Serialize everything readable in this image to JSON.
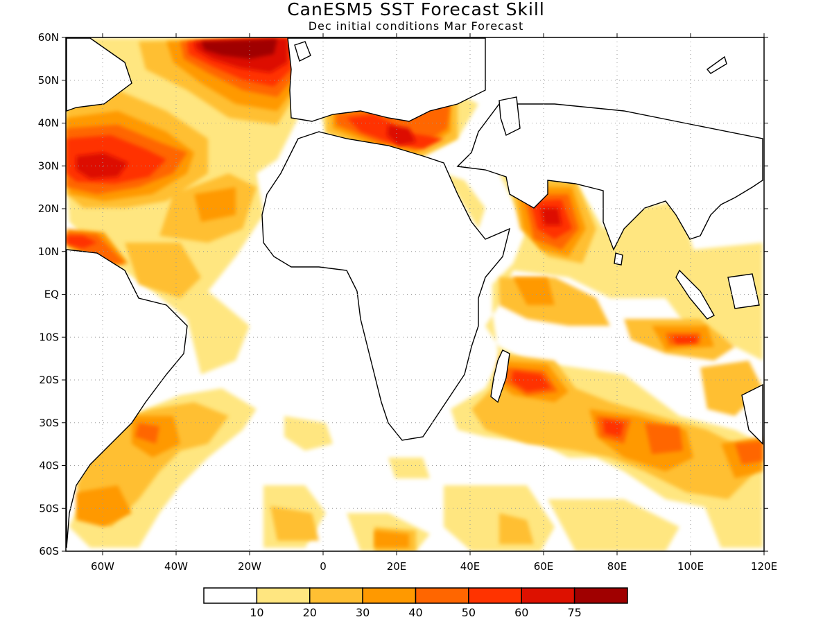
{
  "title": "CanESM5 SST Forecast Skill",
  "subtitle": "Dec initial conditions  Mar Forecast",
  "map": {
    "lon_range": [
      -70,
      120
    ],
    "lat_range": [
      -60,
      60
    ],
    "lat_ticks": [
      "60N",
      "50N",
      "40N",
      "30N",
      "20N",
      "10N",
      "EQ",
      "10S",
      "20S",
      "30S",
      "40S",
      "50S",
      "60S"
    ],
    "lon_ticks": [
      "60W",
      "40W",
      "20W",
      "0",
      "20E",
      "40E",
      "60E",
      "80E",
      "100E",
      "120E"
    ],
    "grid": "dotted",
    "coastlines": true
  },
  "colorbar": {
    "levels": [
      "10",
      "20",
      "30",
      "40",
      "50",
      "60",
      "75"
    ],
    "colors": [
      "#ffffff",
      "#ffe680",
      "#ffbf33",
      "#ff9900",
      "#ff6600",
      "#ff3300",
      "#dd1100",
      "#a00000"
    ]
  },
  "chart_data": {
    "type": "heatmap",
    "title": "CanESM5 SST Forecast Skill",
    "subtitle": "Dec initial conditions  Mar Forecast",
    "units_levels": [
      10,
      20,
      30,
      40,
      50,
      60,
      75
    ],
    "regions": [
      {
        "lon": -20,
        "lat": 55,
        "level": 75
      },
      {
        "lon": -50,
        "lat": 31,
        "level": 60
      },
      {
        "lon": -12,
        "lat": 50,
        "level": 50
      },
      {
        "lon": 25,
        "lat": 37,
        "level": 60
      },
      {
        "lon": 8,
        "lat": 40,
        "level": 50
      },
      {
        "lon": 36,
        "lat": 42,
        "level": 50
      },
      {
        "lon": 62,
        "lat": 16,
        "level": 60
      },
      {
        "lon": -62,
        "lat": 12,
        "level": 50
      },
      {
        "lon": -25,
        "lat": 15,
        "level": 30
      },
      {
        "lon": -35,
        "lat": 0,
        "level": 20
      },
      {
        "lon": 55,
        "lat": 0,
        "level": 30
      },
      {
        "lon": 98,
        "lat": -11,
        "level": 50
      },
      {
        "lon": 55,
        "lat": -20,
        "level": 60
      },
      {
        "lon": 80,
        "lat": -32,
        "level": 50
      },
      {
        "lon": 92,
        "lat": -32,
        "level": 40
      },
      {
        "lon": -48,
        "lat": -35,
        "level": 50
      },
      {
        "lon": 20,
        "lat": -57,
        "level": 40
      },
      {
        "lon": 115,
        "lat": -22,
        "level": 30
      }
    ]
  }
}
